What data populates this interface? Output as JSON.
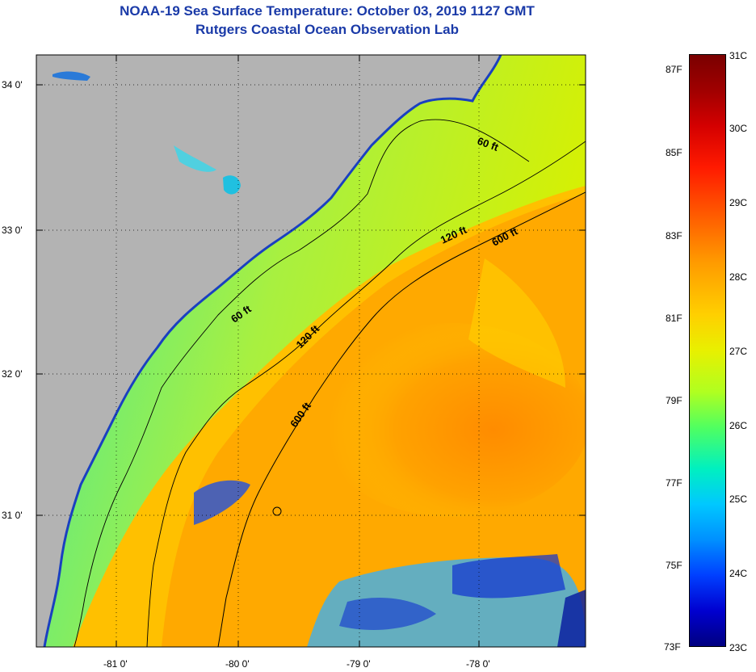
{
  "header": {
    "title": "NOAA-19 Sea Surface Temperature:  October 03, 2019 1127 GMT",
    "subtitle": "Rutgers Coastal Ocean Observation Lab"
  },
  "map": {
    "lat_ticks": [
      "34 0'",
      "33 0'",
      "32 0'",
      "31 0'"
    ],
    "lon_ticks": [
      "-81 0'",
      "-80 0'",
      "-79 0'",
      "-78 0'"
    ],
    "contour_labels": [
      "60 ft",
      "120 ft",
      "600 ft",
      "60 ft",
      "120 ft",
      "600 ft"
    ],
    "colors": {
      "land": "#b3b3b3",
      "warm": "#ff9a00",
      "cool": "#00c8ff"
    }
  },
  "colorbar": {
    "fahrenheit": [
      "87F",
      "85F",
      "83F",
      "81F",
      "79F",
      "77F",
      "75F",
      "73F"
    ],
    "celsius": [
      "31C",
      "30C",
      "29C",
      "28C",
      "27C",
      "26C",
      "25C",
      "24C",
      "23C"
    ]
  }
}
